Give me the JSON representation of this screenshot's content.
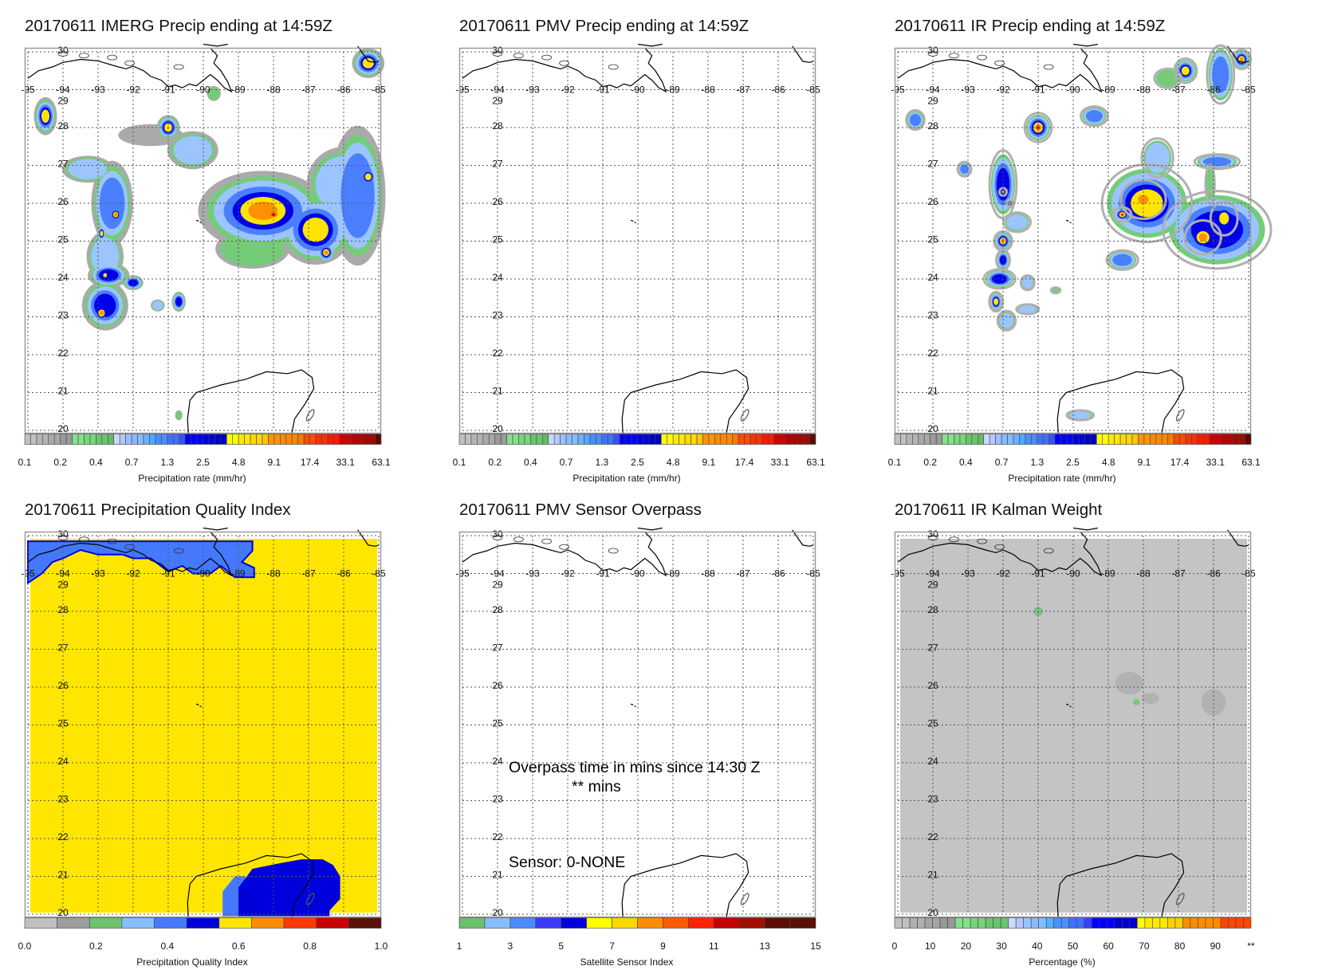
{
  "panels": [
    {
      "id": "imerg",
      "title": "20170611 IMERG Precip ending at 14:59Z",
      "colorbar": "precip",
      "kind": "imerg"
    },
    {
      "id": "pmv",
      "title": "20170611 PMV Precip ending at 14:59Z",
      "colorbar": "precip",
      "kind": "empty"
    },
    {
      "id": "ir",
      "title": "20170611 IR Precip ending at 14:59Z",
      "colorbar": "precip",
      "kind": "ir"
    },
    {
      "id": "quality",
      "title": "20170611 Precipitation Quality Index",
      "colorbar": "quality",
      "kind": "quality"
    },
    {
      "id": "overpass",
      "title": "20170611 PMV Sensor Overpass",
      "colorbar": "sensor",
      "kind": "overpass"
    },
    {
      "id": "kalman",
      "title": "20170611 IR Kalman Weight",
      "colorbar": "kalman",
      "kind": "kalman"
    }
  ],
  "map_axes": {
    "lon_ticks": [
      "-95",
      "-94",
      "-93",
      "-92",
      "-91",
      "-90",
      "-89",
      "-88",
      "-87",
      "-86",
      "-85"
    ],
    "lat_ticks": [
      "30",
      "29",
      "28",
      "27",
      "26",
      "25",
      "24",
      "23",
      "22",
      "21",
      "20"
    ],
    "lon_range": [
      -95,
      -85
    ],
    "lat_range": [
      20,
      30
    ]
  },
  "overpass_text": {
    "line1": "Overpass time in mins since 14:30 Z",
    "line2": "** mins",
    "sensor": "Sensor:   0-NONE"
  },
  "colorbars": {
    "precip": {
      "title": "Precipitation rate (mm/hr)",
      "labels": [
        "0.1",
        "0.2",
        "0.4",
        "0.7",
        "1.3",
        "2.5",
        "4.8",
        "9.1",
        "17.4",
        "33.1",
        "63.1"
      ],
      "label_box_positions": [
        0,
        6,
        12,
        18,
        24,
        30,
        36,
        42,
        48,
        54,
        60
      ],
      "groups": [
        [
          "#c0c0c0",
          2
        ],
        [
          "#b4b4b4",
          2
        ],
        [
          "#a8a8a8",
          2
        ],
        [
          "#9a9a9a",
          2
        ],
        [
          "#86e08a",
          2
        ],
        [
          "#78d67c",
          2
        ],
        [
          "#6ac46e",
          2
        ],
        [
          "#62bb66",
          1
        ],
        [
          "#ccd8ff",
          1
        ],
        [
          "#b2c8ff",
          1
        ],
        [
          "#9cc0ff",
          1
        ],
        [
          "#86bcff",
          2
        ],
        [
          "#6eb0ff",
          1
        ],
        [
          "#50a8ff",
          1
        ],
        [
          "#4a8cff",
          2
        ],
        [
          "#4070ff",
          2
        ],
        [
          "#3a50ff",
          1
        ],
        [
          "#0000ff",
          3
        ],
        [
          "#0000e0",
          2
        ],
        [
          "#0000c8",
          2
        ],
        [
          "#ffff00",
          2
        ],
        [
          "#ffe800",
          2
        ],
        [
          "#ffd800",
          2
        ],
        [
          "#ffc800",
          1
        ],
        [
          "#ff9400",
          2
        ],
        [
          "#ff8800",
          3
        ],
        [
          "#ff7800",
          1
        ],
        [
          "#ff4a00",
          2
        ],
        [
          "#ff3000",
          2
        ],
        [
          "#ff1800",
          2
        ],
        [
          "#d20000",
          2
        ],
        [
          "#b80000",
          2
        ],
        [
          "#a00800",
          2
        ],
        [
          "#5a0c04",
          1
        ]
      ]
    },
    "quality": {
      "title": "Precipitation Quality Index",
      "labels": [
        "0.0",
        "0.2",
        "0.4",
        "0.6",
        "0.8",
        "1.0"
      ],
      "label_box_positions": [
        0,
        2,
        4,
        6,
        8,
        10
      ],
      "groups": [
        [
          "#c0c0c0",
          1
        ],
        [
          "#9e9e9e",
          1
        ],
        [
          "#6ec46e",
          1
        ],
        [
          "#86bfff",
          1
        ],
        [
          "#4478ff",
          1
        ],
        [
          "#0000dc",
          1
        ],
        [
          "#ffe600",
          1
        ],
        [
          "#ff8c00",
          1
        ],
        [
          "#ff3700",
          1
        ],
        [
          "#c80000",
          1
        ],
        [
          "#5a1208",
          1
        ]
      ]
    },
    "sensor": {
      "title": "Satellite Sensor Index",
      "labels": [
        "1",
        "3",
        "5",
        "7",
        "9",
        "11",
        "13",
        "15"
      ],
      "label_box_positions": [
        0,
        2,
        4,
        6,
        8,
        10,
        12,
        14
      ],
      "groups": [
        [
          "#6cc06c",
          1
        ],
        [
          "#86bfff",
          1
        ],
        [
          "#4a8cff",
          1
        ],
        [
          "#3a3aff",
          1
        ],
        [
          "#0000e0",
          1
        ],
        [
          "#ffff00",
          1
        ],
        [
          "#ffd800",
          1
        ],
        [
          "#ff8c00",
          1
        ],
        [
          "#ff5a00",
          1
        ],
        [
          "#ff2200",
          1
        ],
        [
          "#c40000",
          1
        ],
        [
          "#a00e00",
          1
        ],
        [
          "#5c0e04",
          1
        ],
        [
          "#5a1006",
          1
        ]
      ]
    },
    "kalman": {
      "title": "Percentage (%)",
      "labels": [
        "0",
        "10",
        "20",
        "30",
        "40",
        "50",
        "60",
        "70",
        "80",
        "90",
        "**"
      ],
      "label_box_positions": [
        0,
        5,
        10,
        15,
        20,
        25,
        30,
        35,
        40,
        45,
        50
      ],
      "groups": [
        [
          "#c0c0c0",
          2
        ],
        [
          "#b0b0b0",
          2
        ],
        [
          "#a4a4a4",
          2
        ],
        [
          "#989898",
          2
        ],
        [
          "#86e08a",
          2
        ],
        [
          "#78d47c",
          2
        ],
        [
          "#6ac46e",
          3
        ],
        [
          "#ccd8ff",
          1
        ],
        [
          "#b0c8ff",
          1
        ],
        [
          "#98c2ff",
          1
        ],
        [
          "#86bcff",
          2
        ],
        [
          "#56b0ff",
          1
        ],
        [
          "#4a90ff",
          2
        ],
        [
          "#4070ff",
          2
        ],
        [
          "#3a40ff",
          1
        ],
        [
          "#0000ff",
          3
        ],
        [
          "#0000d0",
          3
        ],
        [
          "#ffff00",
          1
        ],
        [
          "#ffe800",
          3
        ],
        [
          "#ffd000",
          2
        ],
        [
          "#ff8c00",
          5
        ],
        [
          "#ff4400",
          4
        ]
      ]
    }
  }
}
